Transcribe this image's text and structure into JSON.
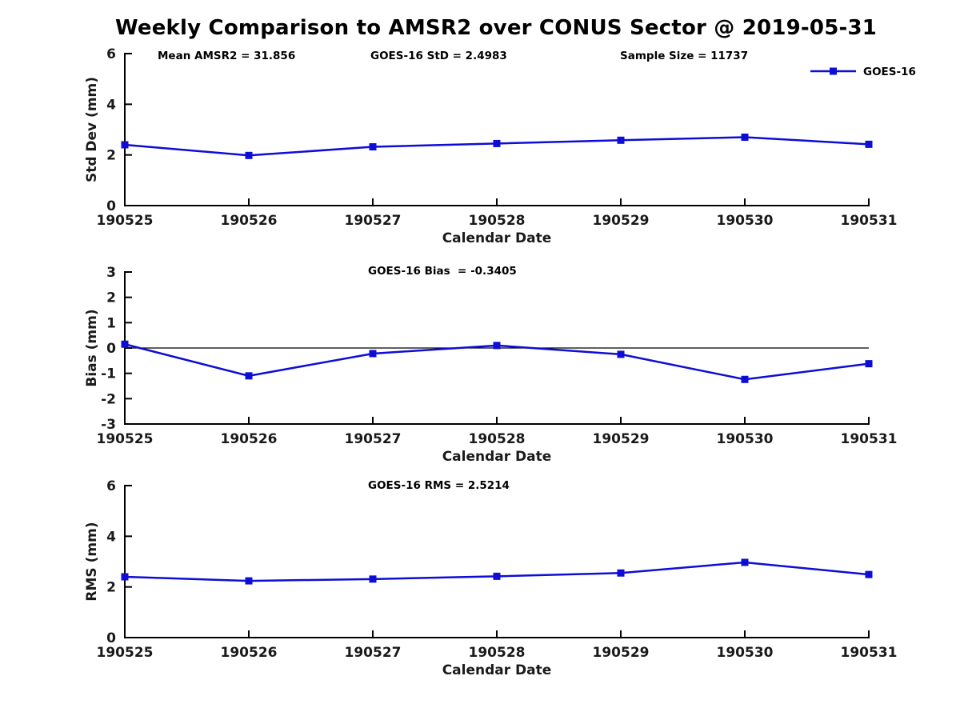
{
  "page": {
    "title": "Weekly Comparison to AMSR2 over CONUS Sector @ 2019-05-31",
    "background": "#ffffff",
    "line_color": "#0d0dd6",
    "axis_color": "#000000",
    "text_color": "#1a1a1a"
  },
  "legend": {
    "label": "GOES-16",
    "position": "top-right-of-first-chart"
  },
  "chart_data": [
    {
      "type": "line",
      "id": "stddev",
      "x": [
        "190525",
        "190526",
        "190527",
        "190528",
        "190529",
        "190530",
        "190531"
      ],
      "series": [
        {
          "name": "GOES-16",
          "values": [
            2.4,
            1.98,
            2.32,
            2.45,
            2.58,
            2.7,
            2.42
          ]
        }
      ],
      "xlabel": "Calendar Date",
      "ylabel": "Std Dev (mm)",
      "ylim": [
        0,
        6
      ],
      "yticks": [
        0,
        2,
        4,
        6
      ],
      "grid": false,
      "zero_line": false,
      "legend": true,
      "marker": "square",
      "annotations": [
        {
          "text": "Mean AMSR2 = 31.856",
          "x": 197,
          "y": 74
        },
        {
          "text": "GOES-16 StD = 2.4983",
          "x": 463,
          "y": 74
        },
        {
          "text": "Sample Size = 11737",
          "x": 775,
          "y": 74
        }
      ]
    },
    {
      "type": "line",
      "id": "bias",
      "x": [
        "190525",
        "190526",
        "190527",
        "190528",
        "190529",
        "190530",
        "190531"
      ],
      "series": [
        {
          "name": "GOES-16",
          "values": [
            0.15,
            -1.1,
            -0.22,
            0.1,
            -0.25,
            -1.24,
            -0.62
          ]
        }
      ],
      "xlabel": "Calendar Date",
      "ylabel": "Bias (mm)",
      "ylim": [
        -3,
        3
      ],
      "yticks": [
        -3,
        -2,
        -1,
        0,
        1,
        2,
        3
      ],
      "grid": false,
      "zero_line": true,
      "legend": false,
      "marker": "square",
      "annotations": [
        {
          "text": "GOES-16 Bias  = -0.3405",
          "x": 460,
          "y": 70
        }
      ]
    },
    {
      "type": "line",
      "id": "rms",
      "x": [
        "190525",
        "190526",
        "190527",
        "190528",
        "190529",
        "190530",
        "190531"
      ],
      "series": [
        {
          "name": "GOES-16",
          "values": [
            2.4,
            2.24,
            2.31,
            2.42,
            2.55,
            2.97,
            2.49
          ]
        }
      ],
      "xlabel": "Calendar Date",
      "ylabel": "RMS (mm)",
      "ylim": [
        0,
        6
      ],
      "yticks": [
        0,
        2,
        4,
        6
      ],
      "grid": false,
      "zero_line": false,
      "legend": false,
      "marker": "square",
      "annotations": [
        {
          "text": "GOES-16 RMS = 2.5214",
          "x": 460,
          "y": 71
        }
      ]
    }
  ]
}
